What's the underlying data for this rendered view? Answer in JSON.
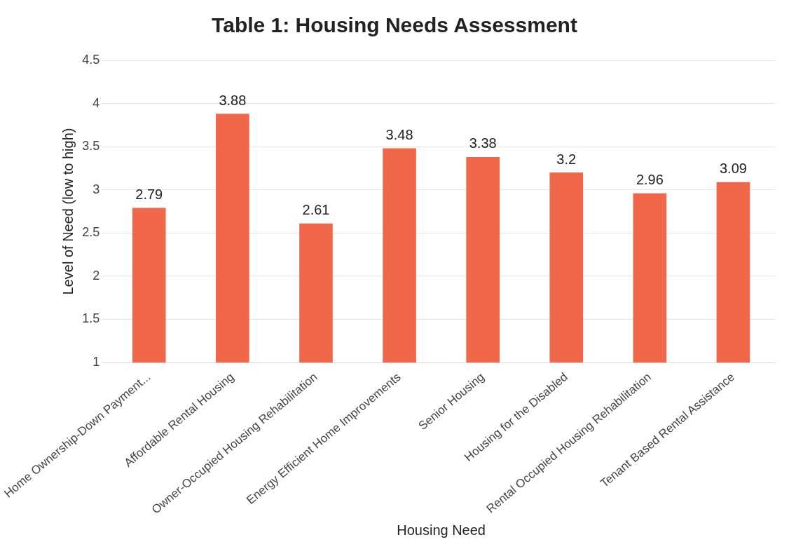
{
  "chart_data": {
    "type": "bar",
    "title": "Table 1: Housing Needs Assessment",
    "xlabel": "Housing Need",
    "ylabel": "Level of Need (low to high)",
    "categories": [
      "Home Ownership-Down Payment...",
      "Affordable Rental Housing",
      "Owner-Occupied Housing Rehabilitation",
      "Energy Efficient Home Improvements",
      "Senior Housing",
      "Housing for the Disabled",
      "Rental Occupied Housing Rehabilitation",
      "Tenant Based Rental Assistance"
    ],
    "values": [
      2.79,
      3.88,
      2.61,
      3.48,
      3.38,
      3.2,
      2.96,
      3.09
    ],
    "color": "#f0674a",
    "ylim": [
      1,
      4.5
    ],
    "yticks": [
      1,
      1.5,
      2,
      2.5,
      3,
      3.5,
      4,
      4.5
    ],
    "grid": "y",
    "data_labels": true,
    "legend": false
  }
}
